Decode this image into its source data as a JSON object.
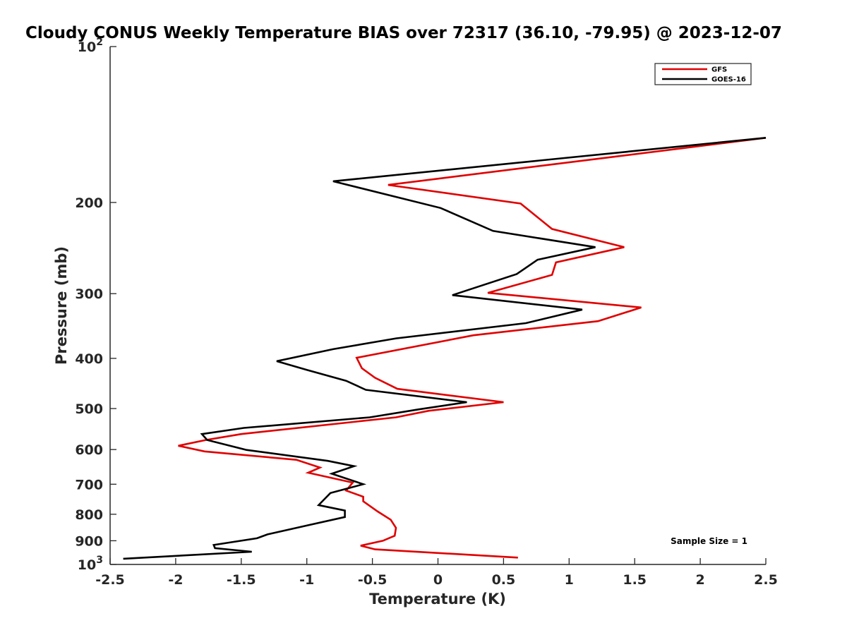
{
  "chart_data": {
    "type": "line",
    "title": "Cloudy CONUS Weekly Temperature BIAS over 72317 (36.10, -79.95) @ 2023-12-07",
    "xlabel": "Temperature (K)",
    "ylabel": "Pressure (mb)",
    "xlim": [
      -2.5,
      2.5
    ],
    "ylim": [
      100,
      1000
    ],
    "y_scale": "log",
    "y_reversed": true,
    "grid": false,
    "legend_position": "top-right",
    "x_ticks": [
      {
        "value": -2.5,
        "label": "-2.5"
      },
      {
        "value": -2,
        "label": "-2"
      },
      {
        "value": -1.5,
        "label": "-1.5"
      },
      {
        "value": -1,
        "label": "-1"
      },
      {
        "value": -0.5,
        "label": "-0.5"
      },
      {
        "value": 0,
        "label": "0"
      },
      {
        "value": 0.5,
        "label": "0.5"
      },
      {
        "value": 1,
        "label": "1"
      },
      {
        "value": 1.5,
        "label": "1.5"
      },
      {
        "value": 2,
        "label": "2"
      },
      {
        "value": 2.5,
        "label": "2.5"
      }
    ],
    "y_ticks": [
      {
        "value": 200,
        "label": "200"
      },
      {
        "value": 300,
        "label": "300"
      },
      {
        "value": 400,
        "label": "400"
      },
      {
        "value": 500,
        "label": "500"
      },
      {
        "value": 600,
        "label": "600"
      },
      {
        "value": 700,
        "label": "700"
      },
      {
        "value": 800,
        "label": "800"
      },
      {
        "value": 900,
        "label": "900"
      }
    ],
    "y_decade_ticks": [
      {
        "value": 100,
        "base": "10",
        "exp": "2"
      },
      {
        "value": 1000,
        "base": "10",
        "exp": "3"
      }
    ],
    "annotation": "Sample Size = 1",
    "series": [
      {
        "name": "GFS",
        "color": "#e00000",
        "x": [
          2.5,
          -0.38,
          0.63,
          0.87,
          1.42,
          0.9,
          0.87,
          0.38,
          1.55,
          1.22,
          0.27,
          -0.62,
          -0.58,
          -0.48,
          -0.31,
          0.5,
          -0.07,
          -0.32,
          -1.5,
          -1.77,
          -1.98,
          -1.78,
          -1.08,
          -0.9,
          -0.99,
          -0.65,
          -0.7,
          -0.57,
          -0.57,
          -0.46,
          -0.36,
          -0.32,
          -0.33,
          -0.42,
          -0.59,
          -0.48,
          0.61
        ],
        "y": [
          150,
          185,
          201,
          225,
          244,
          261,
          276,
          299,
          319,
          339,
          361,
          399,
          418,
          436,
          458,
          486,
          505,
          520,
          560,
          575,
          590,
          605,
          628,
          650,
          665,
          695,
          720,
          740,
          755,
          790,
          820,
          850,
          880,
          900,
          920,
          935,
          970
        ]
      },
      {
        "name": "GOES-16",
        "color": "#000000",
        "x": [
          2.5,
          -0.8,
          0.02,
          0.42,
          1.2,
          0.76,
          0.6,
          0.11,
          1.1,
          0.67,
          -0.32,
          -0.8,
          -1.23,
          -1.0,
          -0.7,
          -0.55,
          0.22,
          -0.15,
          -0.52,
          -1.48,
          -1.8,
          -1.76,
          -1.46,
          -0.84,
          -0.64,
          -0.81,
          -0.57,
          -0.82,
          -0.91,
          -0.71,
          -0.71,
          -0.98,
          -1.3,
          -1.38,
          -1.71,
          -1.7,
          -1.42,
          -2.4
        ],
        "y": [
          150,
          182,
          205,
          227,
          244,
          258,
          275,
          302,
          322,
          342,
          366,
          384,
          405,
          421,
          442,
          460,
          486,
          502,
          520,
          545,
          560,
          575,
          601,
          631,
          646,
          668,
          700,
          728,
          768,
          787,
          810,
          839,
          875,
          890,
          917,
          930,
          945,
          975
        ]
      }
    ]
  }
}
